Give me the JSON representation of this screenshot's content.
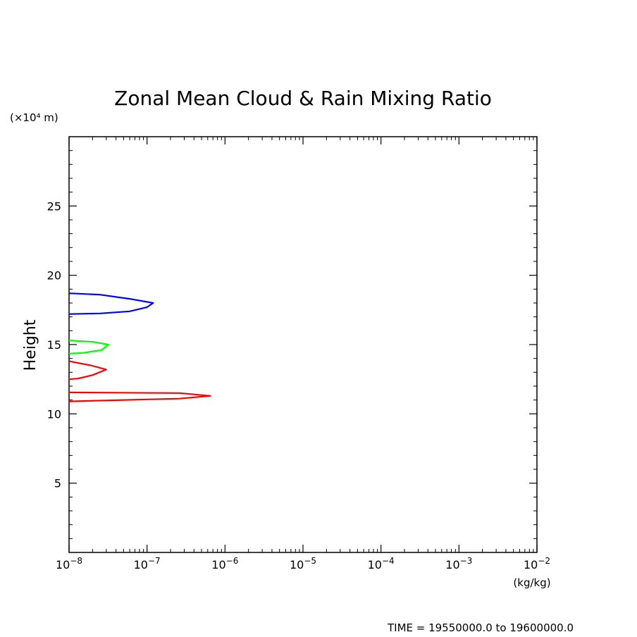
{
  "chart_data": {
    "type": "line",
    "title": "Zonal Mean Cloud & Rain Mixing Ratio",
    "ylabel": "Height",
    "y_unit": "(×10⁴ m)",
    "x_unit": "(kg/kg)",
    "x_scale": "log",
    "xlim": [
      1e-08,
      0.01
    ],
    "ylim": [
      0,
      30
    ],
    "x_ticks": [
      {
        "value": 1e-08,
        "base": "10",
        "exp": "−8"
      },
      {
        "value": 1e-07,
        "base": "10",
        "exp": "−7"
      },
      {
        "value": 1e-06,
        "base": "10",
        "exp": "−6"
      },
      {
        "value": 1e-05,
        "base": "10",
        "exp": "−5"
      },
      {
        "value": 0.0001,
        "base": "10",
        "exp": "−4"
      },
      {
        "value": 0.001,
        "base": "10",
        "exp": "−3"
      },
      {
        "value": 0.01,
        "base": "10",
        "exp": "−2"
      }
    ],
    "y_ticks": [
      {
        "value": 5,
        "label": "5"
      },
      {
        "value": 10,
        "label": "10"
      },
      {
        "value": 15,
        "label": "15"
      },
      {
        "value": 20,
        "label": "20"
      },
      {
        "value": 25,
        "label": "25"
      }
    ],
    "grid": false,
    "legend": "none",
    "series": [
      {
        "color": "#0000ff",
        "points": [
          [
            1e-08,
            18.7
          ],
          [
            2.5e-08,
            18.6
          ],
          [
            6e-08,
            18.3
          ],
          [
            1.2e-07,
            18.0
          ],
          [
            1e-07,
            17.7
          ],
          [
            6e-08,
            17.4
          ],
          [
            2.5e-08,
            17.25
          ],
          [
            1e-08,
            17.2
          ]
        ]
      },
      {
        "color": "#00ff00",
        "points": [
          [
            1e-08,
            15.3
          ],
          [
            2e-08,
            15.2
          ],
          [
            3.2e-08,
            15.0
          ],
          [
            2.6e-08,
            14.6
          ],
          [
            1.5e-08,
            14.4
          ],
          [
            1e-08,
            14.35
          ]
        ]
      },
      {
        "color": "#ff0000",
        "points": [
          [
            1e-08,
            13.8
          ],
          [
            1.9e-08,
            13.5
          ],
          [
            3e-08,
            13.2
          ],
          [
            2e-08,
            12.8
          ],
          [
            1.3e-08,
            12.55
          ],
          [
            1e-08,
            12.5
          ]
        ]
      },
      {
        "color": "#ff0000",
        "points": [
          [
            1e-08,
            11.55
          ],
          [
            2.6e-07,
            11.5
          ],
          [
            6.5e-07,
            11.3
          ],
          [
            2.6e-07,
            11.1
          ],
          [
            1e-08,
            10.9
          ]
        ]
      }
    ]
  },
  "footer": {
    "time_range": "TIME = 19550000.0 to 19600000.0"
  }
}
